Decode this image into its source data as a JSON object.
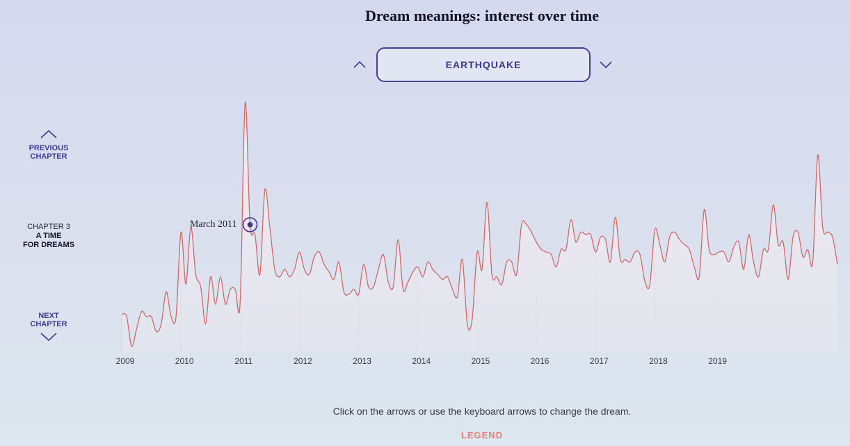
{
  "title": "Dream meanings: interest over time",
  "selector": {
    "current": "EARTHQUAKE",
    "up_icon": "chevron-up-icon",
    "down_icon": "chevron-down-icon"
  },
  "nav": {
    "previous_line1": "PREVIOUS",
    "previous_line2": "CHAPTER",
    "next_line1": "NEXT",
    "next_line2": "CHAPTER",
    "chapter_number": "CHAPTER 3",
    "chapter_name_line1": "A TIME",
    "chapter_name_line2": "FOR DREAMS"
  },
  "hint": "Click on the arrows or use the keyboard arrows to change the dream.",
  "legend": "LEGEND",
  "colors": {
    "accent": "#3e3a8a",
    "line": "#c96b6b",
    "legend": "#e0807a"
  },
  "chart_data": {
    "type": "area",
    "x_tick_labels": [
      "2009",
      "2010",
      "2011",
      "2012",
      "2013",
      "2014",
      "2015",
      "2016",
      "2017",
      "2018",
      "2019"
    ],
    "x_start_year": 2009,
    "ylim": [
      0,
      100
    ],
    "values": [
      15,
      14,
      2,
      9,
      16,
      14,
      14,
      8,
      11,
      24,
      14,
      14,
      48,
      27,
      50,
      31,
      26,
      11,
      30,
      19,
      30,
      19,
      25,
      25,
      20,
      100,
      51,
      47,
      31,
      65,
      50,
      33,
      30,
      33,
      30,
      33,
      40,
      33,
      31,
      38,
      40,
      35,
      32,
      29,
      36,
      24,
      23,
      25,
      23,
      35,
      26,
      26,
      33,
      39,
      28,
      26,
      45,
      25,
      28,
      32,
      34,
      30,
      36,
      33,
      31,
      29,
      30,
      25,
      22,
      37,
      11,
      13,
      40,
      33,
      60,
      31,
      30,
      27,
      36,
      36,
      31,
      51,
      51,
      48,
      44,
      41,
      40,
      39,
      34,
      41,
      41,
      53,
      44,
      48,
      47,
      47,
      40,
      46,
      45,
      36,
      54,
      37,
      37,
      36,
      40,
      39,
      28,
      27,
      49,
      43,
      36,
      46,
      48,
      45,
      43,
      41,
      34,
      30,
      57,
      41,
      39,
      40,
      40,
      36,
      42,
      44,
      33,
      47,
      36,
      30,
      41,
      41,
      59,
      43,
      44,
      29,
      46,
      48,
      38,
      41,
      36,
      79,
      50,
      48,
      46,
      35
    ]
  },
  "annotation": {
    "label": "March 2011",
    "index": 26
  }
}
